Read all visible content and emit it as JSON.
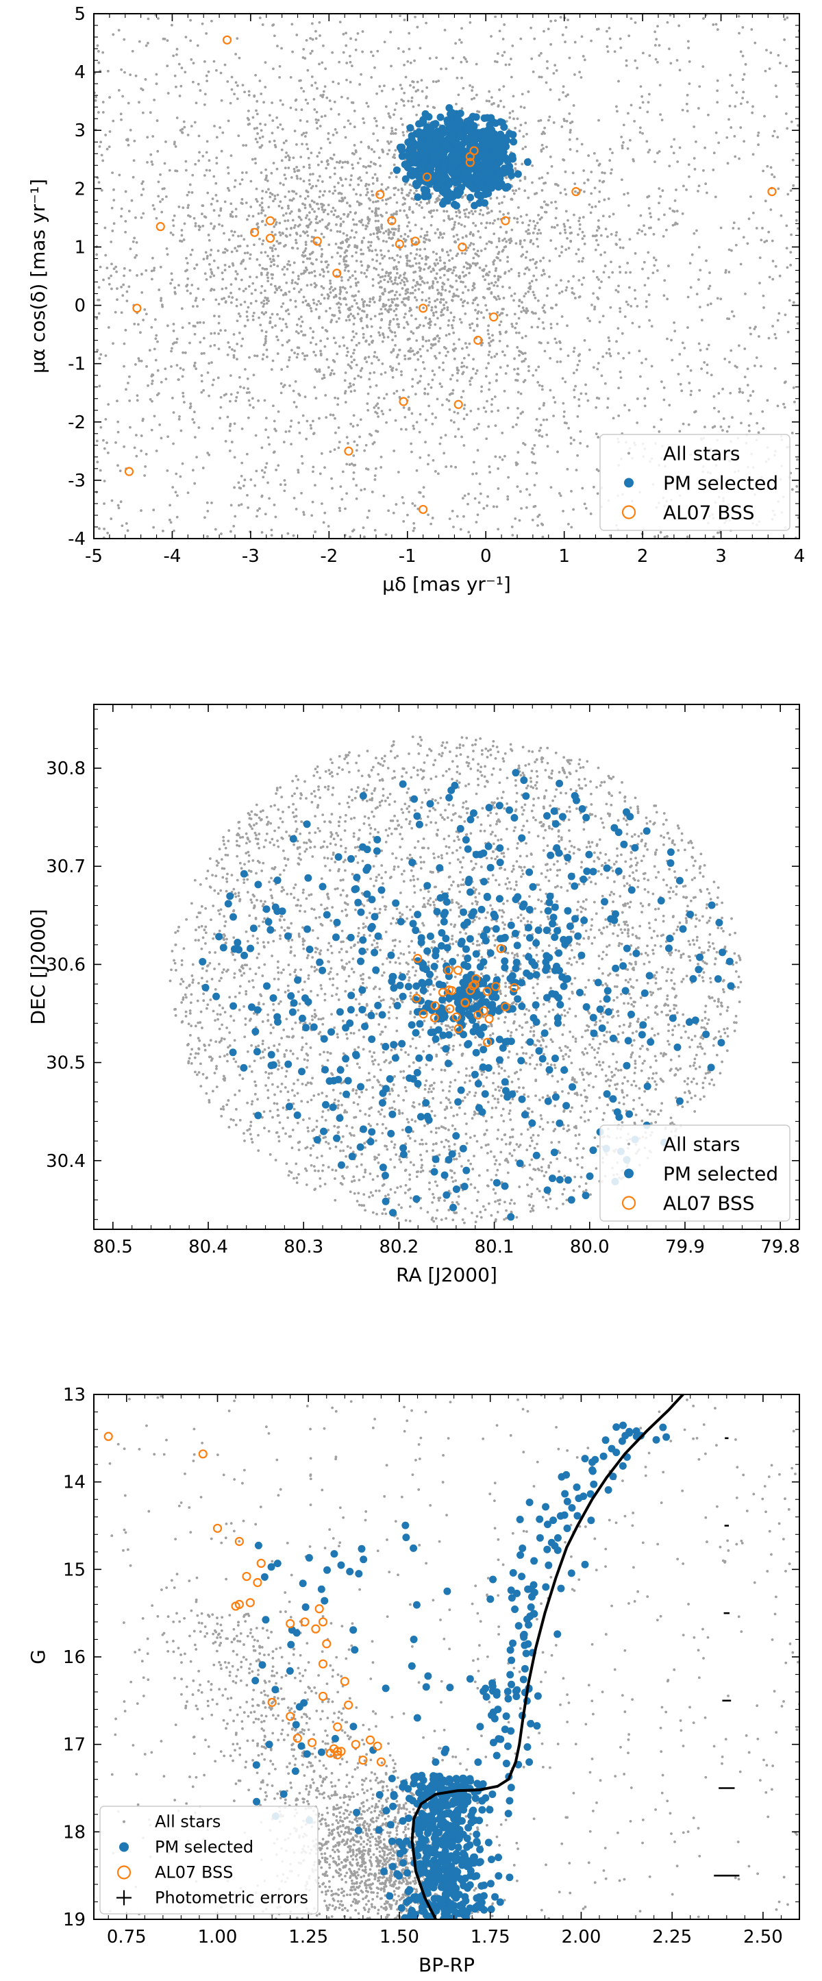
{
  "colors": {
    "all": "#a0a0a0",
    "pm": "#1f77b4",
    "bss": "#ff7f0e",
    "line": "#000000",
    "frame": "#000000"
  },
  "chart_data": [
    {
      "type": "scatter",
      "xlabel": "μδ [mas yr⁻¹]",
      "ylabel": "μα cos(δ) [mas yr⁻¹]",
      "xlim": [
        -5,
        4
      ],
      "ylim": [
        -4,
        5
      ],
      "xticks": [
        -5,
        -4,
        -3,
        -2,
        -1,
        0,
        1,
        2,
        3,
        4
      ],
      "yticks": [
        -4,
        -3,
        -2,
        -1,
        0,
        1,
        2,
        3,
        4,
        5
      ],
      "legend": {
        "placement": "lower right",
        "entries": [
          "All stars",
          "PM selected",
          "AL07 BSS"
        ]
      },
      "series": [
        {
          "name": "All stars",
          "marker": "small dot",
          "distribution": "dense field spread across plot, densest near (-1.2, 0.8)",
          "count": 4500
        },
        {
          "name": "PM selected",
          "marker": "filled circle",
          "distribution": "tight cluster",
          "center": [
            -0.35,
            2.55
          ],
          "radius": 0.9,
          "count": 650
        },
        {
          "name": "AL07 BSS",
          "marker": "open circle",
          "points": [
            [
              -3.3,
              4.55
            ],
            [
              -4.15,
              1.35
            ],
            [
              -4.45,
              -0.05
            ],
            [
              -4.55,
              -2.85
            ],
            [
              -2.95,
              1.25
            ],
            [
              -2.75,
              1.45
            ],
            [
              -2.75,
              1.15
            ],
            [
              -2.15,
              1.1
            ],
            [
              -1.9,
              0.55
            ],
            [
              -1.35,
              1.9
            ],
            [
              -1.2,
              1.45
            ],
            [
              -1.1,
              1.05
            ],
            [
              -0.9,
              1.1
            ],
            [
              -0.75,
              2.2
            ],
            [
              -0.3,
              1.0
            ],
            [
              0.25,
              1.45
            ],
            [
              0.1,
              -0.2
            ],
            [
              -0.1,
              -0.6
            ],
            [
              -0.8,
              -0.05
            ],
            [
              -1.05,
              -1.65
            ],
            [
              -0.35,
              -1.7
            ],
            [
              -1.75,
              -2.5
            ],
            [
              -0.8,
              -3.5
            ],
            [
              1.15,
              1.95
            ],
            [
              3.65,
              1.95
            ],
            [
              -0.2,
              2.55
            ],
            [
              -0.15,
              2.65
            ],
            [
              -0.2,
              2.45
            ]
          ]
        }
      ]
    },
    {
      "type": "scatter",
      "xlabel": "RA [J2000]",
      "ylabel": "DEC [J2000]",
      "xlim": [
        80.52,
        79.78
      ],
      "ylim": [
        30.33,
        30.865
      ],
      "xticks": [
        80.5,
        80.4,
        80.3,
        80.2,
        80.1,
        80.0,
        79.9,
        79.8
      ],
      "xticklabels": [
        "80.5",
        "80.4",
        "80.3",
        "80.2",
        "80.1",
        "80.0",
        "79.9",
        "79.8"
      ],
      "yticks": [
        30.4,
        30.5,
        30.6,
        30.7,
        30.8
      ],
      "legend": {
        "placement": "lower right",
        "entries": [
          "All stars",
          "PM selected",
          "AL07 BSS"
        ]
      },
      "series": [
        {
          "name": "All stars",
          "marker": "small dot",
          "distribution": "filled ellipse",
          "center": [
            80.14,
            30.585
          ],
          "radius_ra": 0.3,
          "radius_dec": 0.25,
          "count": 4000
        },
        {
          "name": "PM selected",
          "marker": "filled circle",
          "distribution": "concentrated toward center",
          "center": [
            80.13,
            30.57
          ],
          "count": 650
        },
        {
          "name": "AL07 BSS",
          "marker": "open circle",
          "distribution": "central clump",
          "center": [
            80.13,
            30.565
          ],
          "count": 28
        }
      ]
    },
    {
      "type": "scatter",
      "xlabel": "BP-RP",
      "ylabel": "G",
      "xlim": [
        0.66,
        2.6
      ],
      "ylim": [
        19,
        13
      ],
      "xticks": [
        0.75,
        1.0,
        1.25,
        1.5,
        1.75,
        2.0,
        2.25,
        2.5
      ],
      "xticklabels": [
        "0.75",
        "1.00",
        "1.25",
        "1.50",
        "1.75",
        "2.00",
        "2.25",
        "2.50"
      ],
      "yticks": [
        13,
        14,
        15,
        16,
        17,
        18,
        19
      ],
      "legend": {
        "placement": "lower left",
        "entries": [
          "All stars",
          "PM selected",
          "AL07 BSS",
          "Photometric errors"
        ]
      },
      "series": [
        {
          "name": "All stars",
          "marker": "small dot",
          "count": 2500
        },
        {
          "name": "PM selected",
          "marker": "filled circle",
          "count": 700
        },
        {
          "name": "AL07 BSS",
          "marker": "open circle",
          "points": [
            [
              0.7,
              13.48
            ],
            [
              0.96,
              13.68
            ],
            [
              1.0,
              14.53
            ],
            [
              1.06,
              14.68
            ],
            [
              1.08,
              15.08
            ],
            [
              1.11,
              15.15
            ],
            [
              1.12,
              14.93
            ],
            [
              1.05,
              15.42
            ],
            [
              1.06,
              15.4
            ],
            [
              1.09,
              15.38
            ],
            [
              1.15,
              16.52
            ],
            [
              1.2,
              15.62
            ],
            [
              1.2,
              16.68
            ],
            [
              1.22,
              16.93
            ],
            [
              1.24,
              15.6
            ],
            [
              1.26,
              16.98
            ],
            [
              1.27,
              15.68
            ],
            [
              1.28,
              15.45
            ],
            [
              1.29,
              15.6
            ],
            [
              1.29,
              16.08
            ],
            [
              1.29,
              16.45
            ],
            [
              1.3,
              15.85
            ],
            [
              1.31,
              17.1
            ],
            [
              1.32,
              17.05
            ],
            [
              1.33,
              16.8
            ],
            [
              1.33,
              17.12
            ],
            [
              1.34,
              17.08
            ],
            [
              1.35,
              16.28
            ],
            [
              1.36,
              16.55
            ],
            [
              1.38,
              17.0
            ],
            [
              1.4,
              17.18
            ],
            [
              1.42,
              16.95
            ],
            [
              1.44,
              17.02
            ],
            [
              1.45,
              17.2
            ],
            [
              1.33,
              17.08
            ]
          ]
        },
        {
          "name": "isochrone",
          "marker": "line",
          "points": [
            [
              1.6,
              19.0
            ],
            [
              1.57,
              18.75
            ],
            [
              1.545,
              18.45
            ],
            [
              1.535,
              18.1
            ],
            [
              1.54,
              17.85
            ],
            [
              1.56,
              17.68
            ],
            [
              1.6,
              17.57
            ],
            [
              1.66,
              17.53
            ],
            [
              1.72,
              17.52
            ],
            [
              1.77,
              17.48
            ],
            [
              1.8,
              17.4
            ],
            [
              1.82,
              17.2
            ],
            [
              1.83,
              17.0
            ],
            [
              1.84,
              16.7
            ],
            [
              1.855,
              16.3
            ],
            [
              1.875,
              15.9
            ],
            [
              1.9,
              15.5
            ],
            [
              1.93,
              15.1
            ],
            [
              1.96,
              14.75
            ],
            [
              1.99,
              14.5
            ],
            [
              2.03,
              14.2
            ],
            [
              2.07,
              13.95
            ],
            [
              2.12,
              13.68
            ],
            [
              2.18,
              13.42
            ],
            [
              2.24,
              13.18
            ],
            [
              2.28,
              13.0
            ]
          ]
        },
        {
          "name": "Photometric errors",
          "marker": "errorbar",
          "points": [
            {
              "G": 13.5,
              "err": 0.005
            },
            {
              "G": 14.5,
              "err": 0.006
            },
            {
              "G": 15.5,
              "err": 0.008
            },
            {
              "G": 16.5,
              "err": 0.012
            },
            {
              "G": 17.5,
              "err": 0.022
            },
            {
              "G": 18.5,
              "err": 0.035
            }
          ],
          "bp_rp_position": 2.4
        }
      ]
    }
  ]
}
